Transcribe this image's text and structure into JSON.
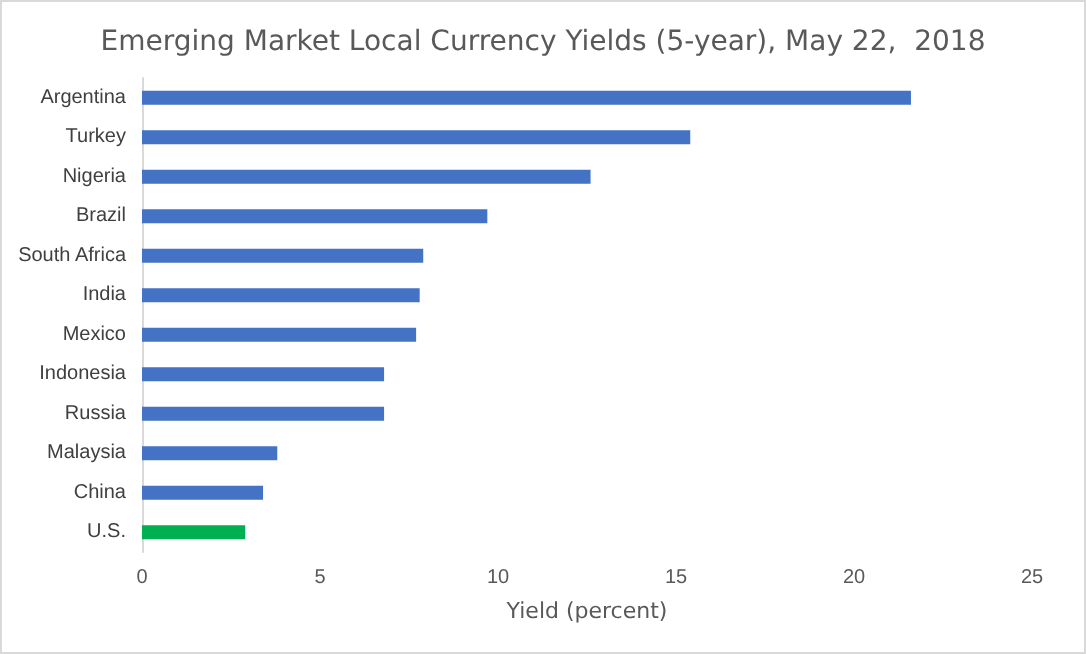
{
  "chart_data": {
    "type": "bar",
    "orientation": "horizontal",
    "title": "Emerging Market Local Currency Yields (5-year), May 22,  2018",
    "xlabel": "Yield (percent)",
    "categories": [
      "Argentina",
      "Turkey",
      "Nigeria",
      "Brazil",
      "South Africa",
      "India",
      "Mexico",
      "Indonesia",
      "Russia",
      "Malaysia",
      "China",
      "U.S."
    ],
    "values": [
      21.6,
      15.4,
      12.6,
      9.7,
      7.9,
      7.8,
      7.7,
      6.8,
      6.8,
      3.8,
      3.4,
      2.9
    ],
    "colors": [
      "#4472c4",
      "#4472c4",
      "#4472c4",
      "#4472c4",
      "#4472c4",
      "#4472c4",
      "#4472c4",
      "#4472c4",
      "#4472c4",
      "#4472c4",
      "#4472c4",
      "#00b050"
    ],
    "xlim": [
      0,
      25
    ],
    "xticks": [
      0,
      5,
      10,
      15,
      20,
      25
    ]
  }
}
